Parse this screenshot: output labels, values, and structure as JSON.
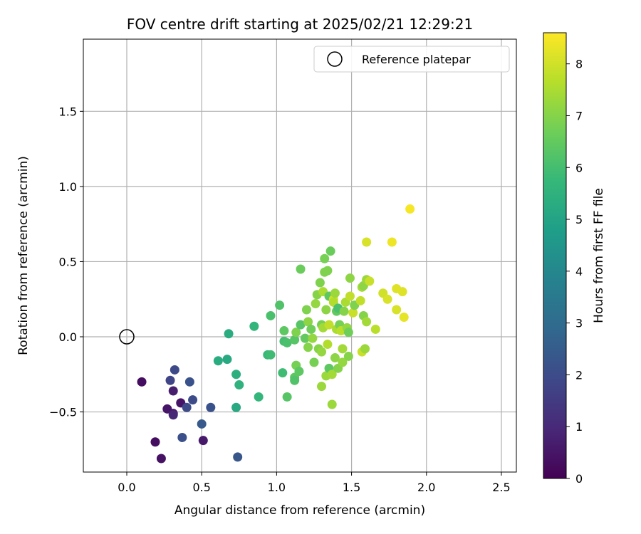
{
  "chart_data": {
    "type": "scatter",
    "title": "FOV centre drift starting at 2025/02/21 12:29:21",
    "xlabel": "Angular distance from reference (arcmin)",
    "ylabel": "Rotation from reference (arcmin)",
    "xlim": [
      -0.29,
      2.6
    ],
    "ylim": [
      -0.9,
      1.98
    ],
    "xticks": [
      0.0,
      0.5,
      1.0,
      1.5,
      2.0,
      2.5
    ],
    "yticks": [
      -0.5,
      0.0,
      0.5,
      1.0,
      1.5
    ],
    "xtick_labels": [
      "0.0",
      "0.5",
      "1.0",
      "1.5",
      "2.0",
      "2.5"
    ],
    "ytick_labels": [
      "−0.5",
      "0.0",
      "0.5",
      "1.0",
      "1.5"
    ],
    "grid": true,
    "legend": {
      "position": "upper-right",
      "entries": [
        "Reference platepar"
      ]
    },
    "reference_point": {
      "name": "Reference platepar",
      "x": 0.0,
      "y": 0.0
    },
    "colorbar": {
      "label": "Hours from first FF file",
      "colormap": "viridis",
      "range": [
        0,
        8.6
      ],
      "ticks": [
        0,
        1,
        2,
        3,
        4,
        5,
        6,
        7,
        8
      ],
      "tick_labels": [
        "0",
        "1",
        "2",
        "3",
        "4",
        "5",
        "6",
        "7",
        "8"
      ]
    },
    "color_stops": [
      "#440154",
      "#482878",
      "#3e4989",
      "#31688e",
      "#26828e",
      "#1f9e89",
      "#35b779",
      "#6ece58",
      "#b5de2b",
      "#fde725"
    ],
    "points": [
      {
        "x": 0.1,
        "y": -0.3,
        "t": 0.3
      },
      {
        "x": 0.19,
        "y": -0.7,
        "t": 0.3
      },
      {
        "x": 0.23,
        "y": -0.81,
        "t": 0.4
      },
      {
        "x": 0.27,
        "y": -0.48,
        "t": 0.5
      },
      {
        "x": 0.31,
        "y": -0.36,
        "t": 0.7
      },
      {
        "x": 0.31,
        "y": -0.51,
        "t": 0.6
      },
      {
        "x": 0.31,
        "y": -0.52,
        "t": 0.9
      },
      {
        "x": 0.36,
        "y": -0.44,
        "t": 0.5
      },
      {
        "x": 0.51,
        "y": -0.69,
        "t": 0.6
      },
      {
        "x": 0.29,
        "y": -0.29,
        "t": 1.8
      },
      {
        "x": 0.32,
        "y": -0.22,
        "t": 1.9
      },
      {
        "x": 0.37,
        "y": -0.67,
        "t": 2.1
      },
      {
        "x": 0.4,
        "y": -0.47,
        "t": 2.0
      },
      {
        "x": 0.42,
        "y": -0.3,
        "t": 2.2
      },
      {
        "x": 0.44,
        "y": -0.42,
        "t": 2.0
      },
      {
        "x": 0.5,
        "y": -0.58,
        "t": 2.4
      },
      {
        "x": 0.56,
        "y": -0.47,
        "t": 2.2
      },
      {
        "x": 0.74,
        "y": -0.8,
        "t": 2.3
      },
      {
        "x": 0.61,
        "y": -0.16,
        "t": 5.3
      },
      {
        "x": 0.67,
        "y": -0.15,
        "t": 5.2
      },
      {
        "x": 0.68,
        "y": 0.02,
        "t": 5.3
      },
      {
        "x": 0.73,
        "y": -0.47,
        "t": 5.2
      },
      {
        "x": 0.73,
        "y": -0.25,
        "t": 5.4
      },
      {
        "x": 0.75,
        "y": -0.32,
        "t": 5.5
      },
      {
        "x": 0.85,
        "y": 0.07,
        "t": 5.6
      },
      {
        "x": 0.88,
        "y": -0.4,
        "t": 5.7
      },
      {
        "x": 0.94,
        "y": -0.12,
        "t": 5.8
      },
      {
        "x": 0.96,
        "y": -0.12,
        "t": 5.9
      },
      {
        "x": 0.96,
        "y": 0.14,
        "t": 6.1
      },
      {
        "x": 1.02,
        "y": 0.21,
        "t": 6.2
      },
      {
        "x": 1.04,
        "y": -0.24,
        "t": 5.9
      },
      {
        "x": 1.05,
        "y": -0.03,
        "t": 6.0
      },
      {
        "x": 1.05,
        "y": 0.04,
        "t": 6.4
      },
      {
        "x": 1.07,
        "y": -0.04,
        "t": 6.1
      },
      {
        "x": 1.07,
        "y": -0.4,
        "t": 6.3
      },
      {
        "x": 1.12,
        "y": -0.02,
        "t": 6.3
      },
      {
        "x": 1.12,
        "y": -0.27,
        "t": 6.4
      },
      {
        "x": 1.12,
        "y": -0.29,
        "t": 6.2
      },
      {
        "x": 1.13,
        "y": 0.03,
        "t": 6.9
      },
      {
        "x": 1.13,
        "y": -0.19,
        "t": 6.8
      },
      {
        "x": 1.15,
        "y": -0.23,
        "t": 6.4
      },
      {
        "x": 1.16,
        "y": 0.08,
        "t": 6.3
      },
      {
        "x": 1.16,
        "y": 0.45,
        "t": 6.6
      },
      {
        "x": 1.19,
        "y": -0.01,
        "t": 6.5
      },
      {
        "x": 1.2,
        "y": 0.18,
        "t": 6.9
      },
      {
        "x": 1.21,
        "y": -0.07,
        "t": 7.0
      },
      {
        "x": 1.21,
        "y": 0.1,
        "t": 7.1
      },
      {
        "x": 1.23,
        "y": 0.05,
        "t": 6.7
      },
      {
        "x": 1.24,
        "y": -0.01,
        "t": 7.2
      },
      {
        "x": 1.25,
        "y": -0.17,
        "t": 6.8
      },
      {
        "x": 1.26,
        "y": 0.22,
        "t": 7.2
      },
      {
        "x": 1.27,
        "y": 0.28,
        "t": 7.0
      },
      {
        "x": 1.28,
        "y": -0.08,
        "t": 7.0
      },
      {
        "x": 1.29,
        "y": 0.36,
        "t": 6.9
      },
      {
        "x": 1.3,
        "y": 0.08,
        "t": 6.8
      },
      {
        "x": 1.3,
        "y": -0.1,
        "t": 7.2
      },
      {
        "x": 1.3,
        "y": -0.33,
        "t": 7.3
      },
      {
        "x": 1.31,
        "y": 0.06,
        "t": 7.4
      },
      {
        "x": 1.31,
        "y": 0.3,
        "t": 7.5
      },
      {
        "x": 1.32,
        "y": 0.43,
        "t": 6.9
      },
      {
        "x": 1.32,
        "y": 0.52,
        "t": 6.8
      },
      {
        "x": 1.33,
        "y": 0.18,
        "t": 7.1
      },
      {
        "x": 1.33,
        "y": -0.26,
        "t": 7.3
      },
      {
        "x": 1.34,
        "y": -0.05,
        "t": 7.6
      },
      {
        "x": 1.34,
        "y": 0.44,
        "t": 6.9
      },
      {
        "x": 1.35,
        "y": -0.21,
        "t": 6.4
      },
      {
        "x": 1.35,
        "y": 0.27,
        "t": 6.4
      },
      {
        "x": 1.35,
        "y": 0.08,
        "t": 7.8
      },
      {
        "x": 1.36,
        "y": 0.57,
        "t": 6.6
      },
      {
        "x": 1.37,
        "y": -0.25,
        "t": 7.4
      },
      {
        "x": 1.37,
        "y": -0.45,
        "t": 7.3
      },
      {
        "x": 1.38,
        "y": 0.25,
        "t": 8.0
      },
      {
        "x": 1.38,
        "y": 0.23,
        "t": 7.6
      },
      {
        "x": 1.39,
        "y": 0.29,
        "t": 7.3
      },
      {
        "x": 1.39,
        "y": -0.14,
        "t": 7.1
      },
      {
        "x": 1.4,
        "y": 0.17,
        "t": 6.5
      },
      {
        "x": 1.4,
        "y": 0.05,
        "t": 7.5
      },
      {
        "x": 1.41,
        "y": 0.19,
        "t": 6.1
      },
      {
        "x": 1.41,
        "y": -0.21,
        "t": 7.0
      },
      {
        "x": 1.42,
        "y": 0.08,
        "t": 6.8
      },
      {
        "x": 1.43,
        "y": 0.04,
        "t": 7.7
      },
      {
        "x": 1.44,
        "y": -0.08,
        "t": 7.4
      },
      {
        "x": 1.44,
        "y": -0.17,
        "t": 7.2
      },
      {
        "x": 1.45,
        "y": 0.17,
        "t": 7.0
      },
      {
        "x": 1.46,
        "y": 0.23,
        "t": 7.5
      },
      {
        "x": 1.47,
        "y": 0.06,
        "t": 7.2
      },
      {
        "x": 1.48,
        "y": 0.03,
        "t": 6.7
      },
      {
        "x": 1.48,
        "y": -0.13,
        "t": 7.0
      },
      {
        "x": 1.49,
        "y": 0.27,
        "t": 7.8
      },
      {
        "x": 1.49,
        "y": 0.39,
        "t": 7.1
      },
      {
        "x": 1.51,
        "y": 0.16,
        "t": 7.9
      },
      {
        "x": 1.52,
        "y": 0.21,
        "t": 6.9
      },
      {
        "x": 1.56,
        "y": 0.24,
        "t": 7.8
      },
      {
        "x": 1.57,
        "y": 0.33,
        "t": 7.4
      },
      {
        "x": 1.57,
        "y": -0.1,
        "t": 7.9
      },
      {
        "x": 1.58,
        "y": 0.34,
        "t": 7.1
      },
      {
        "x": 1.58,
        "y": 0.14,
        "t": 7.0
      },
      {
        "x": 1.59,
        "y": -0.08,
        "t": 7.3
      },
      {
        "x": 1.6,
        "y": 0.38,
        "t": 7.3
      },
      {
        "x": 1.6,
        "y": 0.63,
        "t": 8.1
      },
      {
        "x": 1.6,
        "y": 0.1,
        "t": 7.4
      },
      {
        "x": 1.62,
        "y": 0.37,
        "t": 7.9
      },
      {
        "x": 1.66,
        "y": 0.05,
        "t": 7.7
      },
      {
        "x": 1.71,
        "y": 0.29,
        "t": 8.0
      },
      {
        "x": 1.74,
        "y": 0.25,
        "t": 8.1
      },
      {
        "x": 1.77,
        "y": 0.63,
        "t": 8.4
      },
      {
        "x": 1.8,
        "y": 0.32,
        "t": 8.2
      },
      {
        "x": 1.8,
        "y": 0.18,
        "t": 8.1
      },
      {
        "x": 1.84,
        "y": 0.3,
        "t": 8.2
      },
      {
        "x": 1.85,
        "y": 0.13,
        "t": 8.3
      },
      {
        "x": 1.89,
        "y": 0.85,
        "t": 8.5
      }
    ]
  }
}
